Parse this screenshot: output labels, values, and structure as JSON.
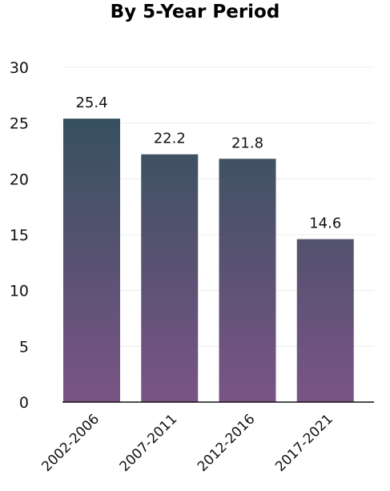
{
  "chart_data": {
    "type": "bar",
    "title": "By 5-Year Period",
    "categories": [
      "2002-2006",
      "2007-2011",
      "2012-2016",
      "2017-2021"
    ],
    "values": [
      25.4,
      22.2,
      21.8,
      14.6
    ],
    "value_labels": [
      "25.4",
      "22.2",
      "21.8",
      "14.6"
    ],
    "y_ticks": [
      0,
      5,
      10,
      15,
      20,
      25,
      30
    ],
    "ylim": [
      0,
      30
    ],
    "xlabel": "",
    "ylabel": "",
    "grid": true,
    "legend": "none",
    "colors": {
      "gradient_top": "#2a5058",
      "gradient_bottom": "#7a5485",
      "grid": "#ececec",
      "axis": "#111111"
    }
  }
}
